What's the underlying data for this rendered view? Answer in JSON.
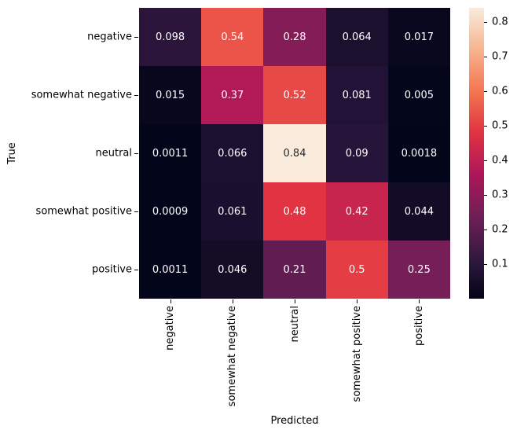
{
  "figure": {
    "background": "#ffffff"
  },
  "chart_data": {
    "type": "heatmap",
    "title": "",
    "xlabel": "Predicted",
    "ylabel": "True",
    "x_categories": [
      "negative",
      "somewhat negative",
      "neutral",
      "somewhat positive",
      "positive"
    ],
    "y_categories": [
      "negative",
      "somewhat negative",
      "neutral",
      "somewhat positive",
      "positive"
    ],
    "matrix": [
      [
        "0.098",
        "0.54",
        "0.28",
        "0.064",
        "0.017"
      ],
      [
        "0.015",
        "0.37",
        "0.52",
        "0.081",
        "0.005"
      ],
      [
        "0.0011",
        "0.066",
        "0.84",
        "0.09",
        "0.0018"
      ],
      [
        "0.0009",
        "0.061",
        "0.48",
        "0.42",
        "0.044"
      ],
      [
        "0.0011",
        "0.046",
        "0.21",
        "0.5",
        "0.25"
      ]
    ],
    "vmin": 0.0009,
    "vmax": 0.84,
    "grid": false,
    "legend_position": "right-colorbar",
    "colorbar_ticks": [
      "0.1",
      "0.2",
      "0.3",
      "0.4",
      "0.5",
      "0.6",
      "0.7",
      "0.8"
    ],
    "colormap": {
      "name": "rocket",
      "anchors": [
        {
          "t": 0.0,
          "color": "#03051A"
        },
        {
          "t": 0.05,
          "color": "#120C25"
        },
        {
          "t": 0.1,
          "color": "#251339"
        },
        {
          "t": 0.143,
          "color": "#35193E"
        },
        {
          "t": 0.286,
          "color": "#701F57"
        },
        {
          "t": 0.429,
          "color": "#AD1759"
        },
        {
          "t": 0.571,
          "color": "#E13342"
        },
        {
          "t": 0.714,
          "color": "#F37651"
        },
        {
          "t": 0.857,
          "color": "#F6B48F"
        },
        {
          "t": 1.0,
          "color": "#FAEBDD"
        }
      ]
    },
    "annotation_text_colors": {
      "light": "#FFFFFF",
      "dark": "#262626"
    },
    "tick_color": "#000000"
  }
}
